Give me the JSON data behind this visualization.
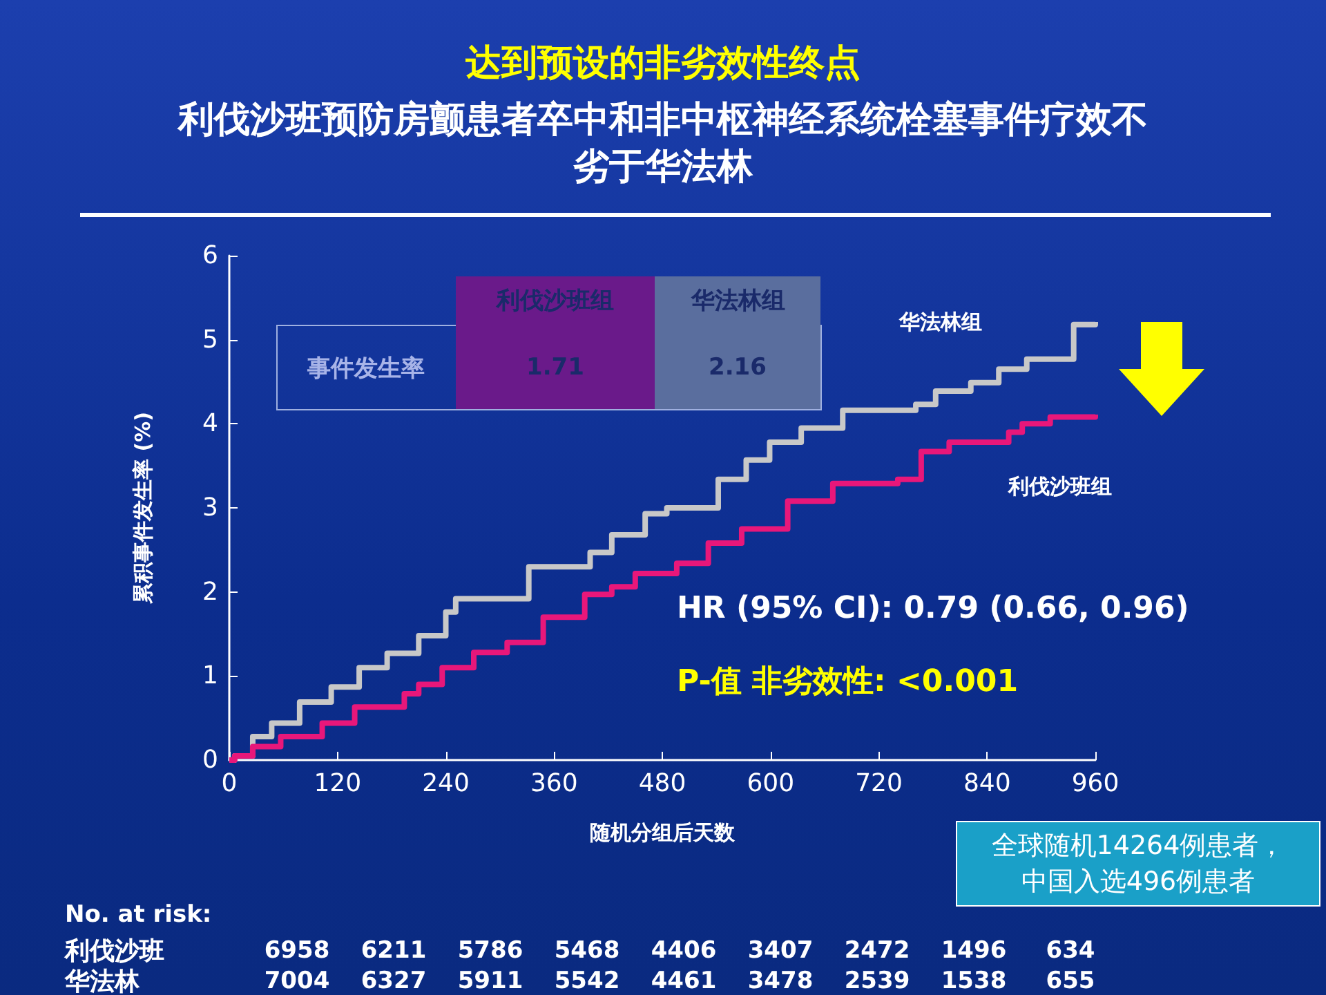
{
  "chart_data": {
    "type": "step",
    "title": "达到预设的非劣效性终点",
    "subtitle": "利伐沙班预防房颤患者卒中和非中枢神经系统栓塞事件疗效不劣于华法林",
    "xlabel": "随机分组后天数",
    "ylabel": "累积事件发生率 (%)",
    "series": [
      {
        "name": "华法林组",
        "color": "#c8c8c8",
        "x": [
          0,
          6,
          26,
          47,
          78,
          113,
          144,
          175,
          210,
          240,
          251,
          282,
          332,
          400,
          424,
          461,
          485,
          542,
          573,
          599,
          634,
          680,
          761,
          783,
          822,
          853,
          884,
          925,
          936,
          960
        ],
        "values": [
          0,
          0.05,
          0.28,
          0.44,
          0.69,
          0.87,
          1.1,
          1.27,
          1.48,
          1.76,
          1.92,
          1.92,
          2.3,
          2.47,
          2.68,
          2.93,
          3.0,
          3.34,
          3.57,
          3.78,
          3.95,
          4.16,
          4.23,
          4.39,
          4.49,
          4.65,
          4.77,
          4.77,
          5.18,
          5.21
        ]
      },
      {
        "name": "利伐沙班组",
        "color": "#e8177a",
        "x": [
          0,
          6,
          26,
          57,
          103,
          139,
          194,
          210,
          236,
          271,
          308,
          348,
          394,
          424,
          450,
          496,
          531,
          568,
          619,
          669,
          741,
          767,
          798,
          864,
          879,
          910,
          960
        ],
        "values": [
          0,
          0.05,
          0.16,
          0.28,
          0.44,
          0.63,
          0.79,
          0.9,
          1.1,
          1.28,
          1.4,
          1.7,
          1.97,
          2.06,
          2.22,
          2.34,
          2.58,
          2.75,
          3.08,
          3.29,
          3.34,
          3.67,
          3.78,
          3.9,
          4.0,
          4.08,
          4.11
        ]
      }
    ],
    "xlim": [
      0,
      960
    ],
    "xticks": [
      0,
      120,
      240,
      360,
      480,
      600,
      720,
      840,
      960
    ],
    "ylim": [
      0,
      6
    ],
    "yticks": [
      0,
      1,
      2,
      3,
      4,
      5,
      6
    ],
    "grid": false,
    "legend": false,
    "marker": "none",
    "line_style": "solid",
    "annotations": [
      "事件发生率",
      "1.71",
      "2.16",
      "HR (95% CI): 0.79 (0.66, 0.96)",
      "P-值 非劣效性: <0.001",
      "全球随机14264例患者，中国入选496例患者",
      "No. at risk:",
      "利伐沙班 6958 6211 5786 5468 4406 3407 2472 1496 634",
      "华法林 7004 6327 5911 5542 4461 3478 2539 1538 655"
    ]
  }
}
